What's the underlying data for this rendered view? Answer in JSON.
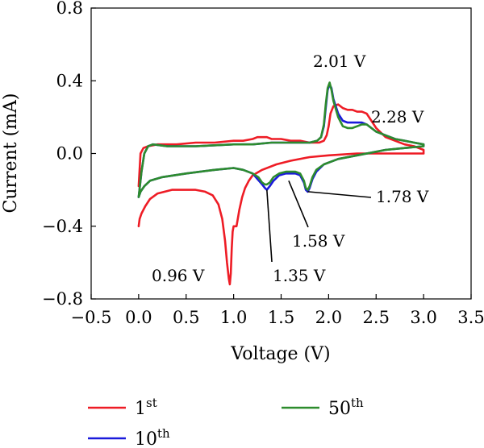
{
  "chart_data": {
    "type": "line",
    "xlabel": "Voltage (V)",
    "ylabel": "Current (mA)",
    "xlim": [
      -0.5,
      3.5
    ],
    "ylim": [
      -0.8,
      0.8
    ],
    "xticks": [
      "−0.5",
      "0.0",
      "0.5",
      "1.0",
      "1.5",
      "2.0",
      "2.5",
      "3.0",
      "3.5"
    ],
    "yticks": [
      "−0.8",
      "−0.4",
      "0.0",
      "0.4",
      "0.8"
    ],
    "grid": false,
    "legend_position": "bottom",
    "series": [
      {
        "name": "1",
        "name_sup": "st",
        "color": "#ee1c25",
        "x": [
          0.0,
          0.01,
          0.03,
          0.07,
          0.12,
          0.2,
          0.35,
          0.5,
          0.6,
          0.7,
          0.78,
          0.84,
          0.88,
          0.91,
          0.93,
          0.95,
          0.96,
          0.97,
          0.98,
          0.99,
          1.0,
          1.03,
          1.06,
          1.09,
          1.12,
          1.16,
          1.2,
          1.3,
          1.45,
          1.6,
          1.8,
          2.0,
          2.3,
          2.6,
          2.8,
          3.0,
          3.0,
          2.9,
          2.8,
          2.7,
          2.6,
          2.5,
          2.45,
          2.4,
          2.35,
          2.3,
          2.25,
          2.2,
          2.15,
          2.1,
          2.05,
          2.02,
          2.0,
          1.98,
          1.95,
          1.9,
          1.85,
          1.8,
          1.7,
          1.6,
          1.5,
          1.4,
          1.35,
          1.3,
          1.25,
          1.2,
          1.1,
          1.0,
          0.8,
          0.6,
          0.4,
          0.2,
          0.1,
          0.05,
          0.02,
          0.0
        ],
        "y": [
          -0.4,
          -0.36,
          -0.33,
          -0.29,
          -0.25,
          -0.22,
          -0.2,
          -0.2,
          -0.2,
          -0.21,
          -0.23,
          -0.28,
          -0.36,
          -0.48,
          -0.6,
          -0.69,
          -0.72,
          -0.66,
          -0.52,
          -0.43,
          -0.4,
          -0.4,
          -0.31,
          -0.24,
          -0.19,
          -0.15,
          -0.12,
          -0.09,
          -0.06,
          -0.04,
          -0.02,
          -0.01,
          0.0,
          0.0,
          0.0,
          0.0,
          0.02,
          0.04,
          0.05,
          0.07,
          0.09,
          0.14,
          0.18,
          0.22,
          0.23,
          0.23,
          0.24,
          0.24,
          0.25,
          0.27,
          0.26,
          0.22,
          0.15,
          0.1,
          0.07,
          0.06,
          0.06,
          0.06,
          0.07,
          0.07,
          0.08,
          0.08,
          0.09,
          0.09,
          0.09,
          0.08,
          0.07,
          0.07,
          0.06,
          0.06,
          0.05,
          0.05,
          0.04,
          0.03,
          0.0,
          -0.18
        ]
      },
      {
        "name": "10",
        "name_sup": "th",
        "color": "#1a1adb",
        "x": [
          0.0,
          0.02,
          0.06,
          0.12,
          0.25,
          0.5,
          0.8,
          1.0,
          1.1,
          1.2,
          1.25,
          1.3,
          1.33,
          1.35,
          1.38,
          1.42,
          1.48,
          1.55,
          1.6,
          1.65,
          1.7,
          1.74,
          1.76,
          1.78,
          1.8,
          1.83,
          1.87,
          1.95,
          2.1,
          2.3,
          2.6,
          2.8,
          3.0,
          3.0,
          2.9,
          2.8,
          2.7,
          2.6,
          2.5,
          2.45,
          2.4,
          2.35,
          2.3,
          2.25,
          2.2,
          2.15,
          2.1,
          2.05,
          2.03,
          2.01,
          1.99,
          1.97,
          1.95,
          1.92,
          1.88,
          1.8,
          1.6,
          1.4,
          1.2,
          1.0,
          0.6,
          0.3,
          0.15,
          0.1,
          0.06,
          0.03,
          0.0
        ],
        "y": [
          -0.24,
          -0.21,
          -0.18,
          -0.15,
          -0.13,
          -0.11,
          -0.09,
          -0.08,
          -0.09,
          -0.11,
          -0.14,
          -0.17,
          -0.19,
          -0.2,
          -0.18,
          -0.15,
          -0.12,
          -0.11,
          -0.11,
          -0.11,
          -0.12,
          -0.16,
          -0.2,
          -0.21,
          -0.19,
          -0.14,
          -0.1,
          -0.06,
          -0.03,
          -0.01,
          0.02,
          0.03,
          0.04,
          0.05,
          0.06,
          0.07,
          0.08,
          0.1,
          0.12,
          0.14,
          0.16,
          0.17,
          0.17,
          0.17,
          0.17,
          0.18,
          0.22,
          0.3,
          0.36,
          0.38,
          0.35,
          0.25,
          0.15,
          0.09,
          0.07,
          0.06,
          0.06,
          0.06,
          0.05,
          0.05,
          0.04,
          0.04,
          0.05,
          0.04,
          0.0,
          -0.1,
          -0.24
        ]
      },
      {
        "name": "50",
        "name_sup": "th",
        "color": "#2d8c2d",
        "x": [
          0.0,
          0.02,
          0.06,
          0.12,
          0.25,
          0.5,
          0.8,
          1.0,
          1.1,
          1.2,
          1.26,
          1.3,
          1.33,
          1.35,
          1.38,
          1.42,
          1.48,
          1.55,
          1.6,
          1.65,
          1.7,
          1.74,
          1.76,
          1.78,
          1.8,
          1.83,
          1.87,
          1.95,
          2.1,
          2.3,
          2.6,
          2.8,
          3.0,
          3.0,
          2.9,
          2.8,
          2.7,
          2.6,
          2.5,
          2.45,
          2.4,
          2.35,
          2.3,
          2.25,
          2.2,
          2.15,
          2.1,
          2.05,
          2.03,
          2.01,
          1.99,
          1.97,
          1.95,
          1.92,
          1.88,
          1.8,
          1.6,
          1.4,
          1.2,
          1.0,
          0.6,
          0.3,
          0.15,
          0.1,
          0.06,
          0.03,
          0.0
        ],
        "y": [
          -0.24,
          -0.21,
          -0.18,
          -0.15,
          -0.13,
          -0.11,
          -0.09,
          -0.08,
          -0.09,
          -0.11,
          -0.13,
          -0.16,
          -0.17,
          -0.17,
          -0.16,
          -0.13,
          -0.11,
          -0.1,
          -0.1,
          -0.1,
          -0.11,
          -0.15,
          -0.19,
          -0.2,
          -0.18,
          -0.13,
          -0.09,
          -0.06,
          -0.03,
          -0.01,
          0.02,
          0.03,
          0.04,
          0.05,
          0.06,
          0.07,
          0.08,
          0.1,
          0.12,
          0.14,
          0.16,
          0.16,
          0.15,
          0.14,
          0.14,
          0.15,
          0.2,
          0.29,
          0.35,
          0.39,
          0.36,
          0.27,
          0.16,
          0.09,
          0.07,
          0.06,
          0.06,
          0.06,
          0.05,
          0.05,
          0.04,
          0.04,
          0.05,
          0.04,
          0.0,
          -0.1,
          -0.24
        ]
      }
    ],
    "annotations": [
      {
        "text": "2.01 V",
        "x": 2.01,
        "y": 0.38,
        "leader": false
      },
      {
        "text": "2.28 V",
        "x": 2.28,
        "y": 0.18,
        "leader": false
      },
      {
        "text": "1.78 V",
        "x": 1.78,
        "y": -0.21,
        "leader": true
      },
      {
        "text": "1.58 V",
        "x": 1.58,
        "y": -0.15,
        "leader": true
      },
      {
        "text": "1.35 V",
        "x": 1.35,
        "y": -0.2,
        "leader": true
      },
      {
        "text": "0.96 V",
        "x": 0.96,
        "y": -0.72,
        "leader": false
      }
    ]
  }
}
